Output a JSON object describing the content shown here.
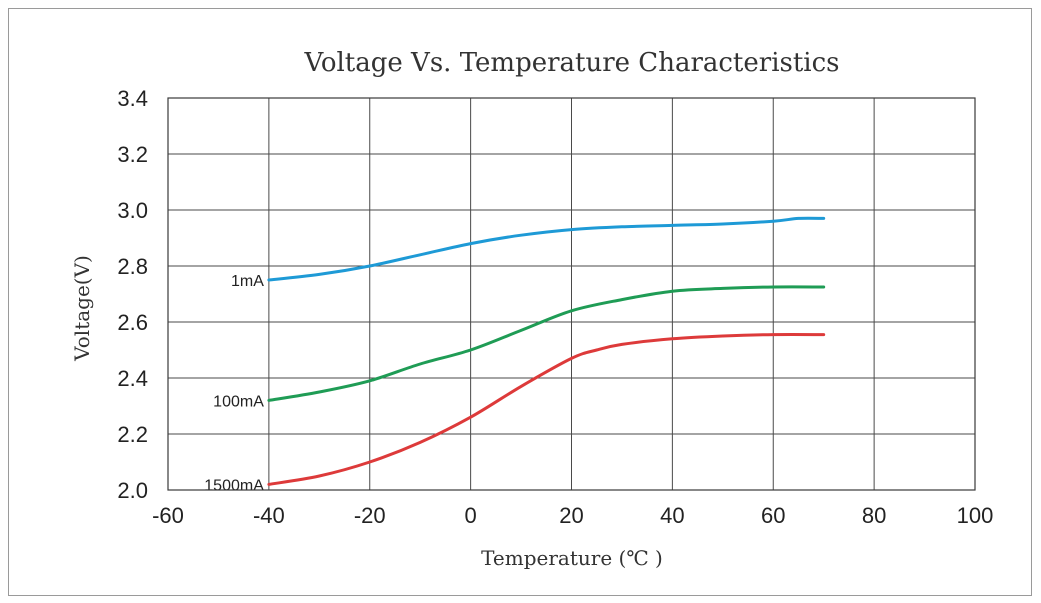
{
  "chart_data": {
    "type": "line",
    "title": "Voltage Vs. Temperature Characteristics",
    "xlabel": "Temperature (℃ )",
    "ylabel": "Voltage(V)",
    "xlim": [
      -60,
      100
    ],
    "ylim": [
      2.0,
      3.4
    ],
    "x_ticks": [
      "-60",
      "-40",
      "-20",
      "0",
      "20",
      "40",
      "60",
      "80",
      "100"
    ],
    "y_ticks": [
      "2.0",
      "2.2",
      "2.4",
      "2.6",
      "2.8",
      "3.0",
      "3.2",
      "3.4"
    ],
    "grid": true,
    "legend": "inline labels at series start",
    "series": [
      {
        "name": "1mA",
        "color": "#1e9ad6",
        "x": [
          -40,
          -30,
          -20,
          -10,
          0,
          10,
          20,
          30,
          40,
          50,
          60,
          65,
          70
        ],
        "y": [
          2.75,
          2.77,
          2.8,
          2.84,
          2.88,
          2.91,
          2.93,
          2.94,
          2.945,
          2.95,
          2.96,
          2.97,
          2.97
        ]
      },
      {
        "name": "100mA",
        "color": "#1f9c55",
        "x": [
          -40,
          -30,
          -20,
          -10,
          0,
          10,
          20,
          30,
          40,
          50,
          60,
          70
        ],
        "y": [
          2.32,
          2.35,
          2.39,
          2.45,
          2.5,
          2.57,
          2.64,
          2.68,
          2.71,
          2.72,
          2.725,
          2.725
        ]
      },
      {
        "name": "1500mA",
        "color": "#dd3a3a",
        "x": [
          -40,
          -30,
          -20,
          -10,
          0,
          10,
          20,
          25,
          30,
          40,
          50,
          60,
          70
        ],
        "y": [
          2.02,
          2.05,
          2.1,
          2.17,
          2.26,
          2.37,
          2.47,
          2.5,
          2.52,
          2.54,
          2.55,
          2.555,
          2.555
        ]
      }
    ]
  }
}
